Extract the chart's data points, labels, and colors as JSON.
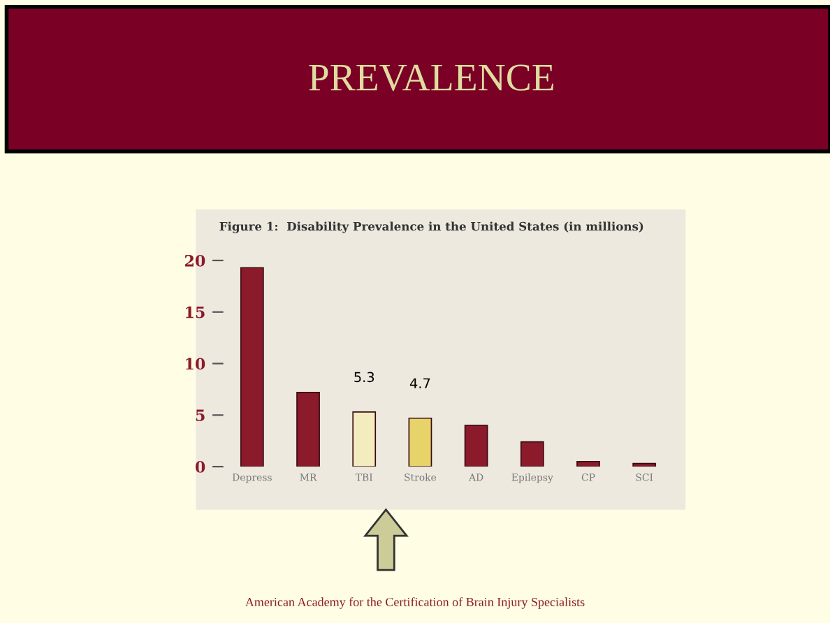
{
  "chart_data": {
    "type": "bar",
    "title": "PREVALENCE",
    "subtitle": "Figure 1:  Disability Prevalence in the United States (in millions)",
    "categories": [
      "Depress",
      "MR",
      "TBI",
      "Stroke",
      "AD",
      "Epilepsy",
      "CP",
      "SCI"
    ],
    "values": [
      19.3,
      7.2,
      5.3,
      4.7,
      4.0,
      2.4,
      0.5,
      0.3
    ],
    "colors": [
      "#8b1a2a",
      "#8b1a2a",
      "#f3ecbf",
      "#e6d46a",
      "#8b1a2a",
      "#8b1a2a",
      "#8b1a2a",
      "#8b1a2a"
    ],
    "value_labels": [
      null,
      null,
      "5.3",
      "4.7",
      null,
      null,
      null,
      null
    ],
    "ylim": [
      0,
      22
    ],
    "yticks": [
      0,
      5,
      10,
      15,
      20
    ],
    "grid": false,
    "legend": false,
    "annotations": [
      "American Academy for the Certification of Brain Injury Specialists"
    ]
  }
}
